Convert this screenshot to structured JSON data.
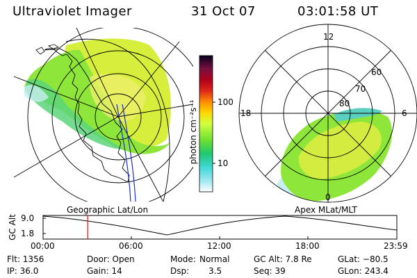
{
  "header": {
    "title": "Ultraviolet Imager",
    "date": "31 Oct 07",
    "time": "03:01:58 UT"
  },
  "colorbar": {
    "label": "photon cm⁻²s⁻¹",
    "ticks": [
      "100",
      "10"
    ],
    "colors": [
      "#000000",
      "#3a0a55",
      "#7a1040",
      "#b0001a",
      "#e0281a",
      "#ff8c00",
      "#ffd700",
      "#d0ff40",
      "#70e030",
      "#20c870",
      "#40d8d8",
      "#a0e8f0",
      "#ffffff"
    ]
  },
  "left_map": {
    "label": "Geographic Lat/Lon"
  },
  "right_map": {
    "label": "Apex MLat/MLT",
    "mlt_labels": {
      "top": "12",
      "left": "18",
      "right": "6",
      "bottom": "0"
    },
    "lat_labels": [
      "60",
      "70",
      "80"
    ]
  },
  "timeline": {
    "ylabel": "GC Alt",
    "yticks": [
      "9.0",
      "1.8"
    ],
    "xticks": [
      "00:00",
      "06:00",
      "12:00",
      "18:00",
      "23:59"
    ],
    "current_time_fraction": 0.126
  },
  "info": {
    "flt": "Flt: 1356",
    "ip": "IP: 36.0",
    "door": "Door: Open",
    "gain": "Gain: 14",
    "mode_label": "Mode:",
    "mode_value": "Normal",
    "dsp_label": "Dsp:",
    "dsp_value": "3.5",
    "gcalt": "GC Alt: 7.8 Re",
    "seq": "Seq: 39",
    "glat": "GLat: −80.5",
    "glon": "GLon: 243.4"
  }
}
